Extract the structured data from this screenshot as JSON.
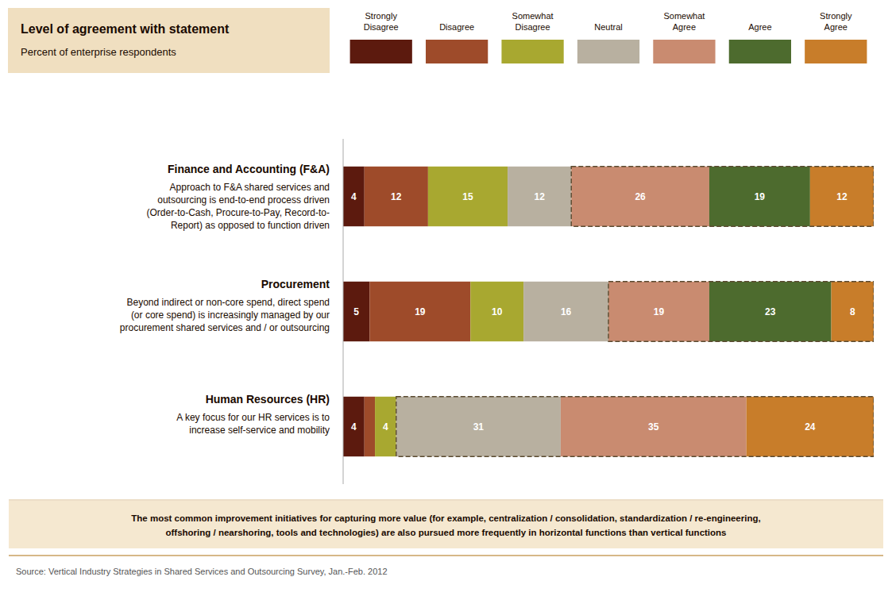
{
  "chart_data": {
    "type": "bar",
    "orientation": "horizontal",
    "stacked": true,
    "data_labels": true,
    "tick_labels": false,
    "grid": false,
    "title": "Level of agreement with statement",
    "subtitle": "Percent of enterprise respondents",
    "categories": [
      "Finance and Accounting (F&A)",
      "Procurement",
      "Human Resources (HR)"
    ],
    "xlim": [
      0,
      100
    ],
    "series": [
      {
        "name": "Strongly\nDisagree",
        "color": "#5c1a0e",
        "values": [
          4,
          5,
          4
        ]
      },
      {
        "name": "Disagree",
        "color": "#9e4b2a",
        "values": [
          12,
          19,
          2
        ]
      },
      {
        "name": "Somewhat\nDisagree",
        "color": "#a8a830",
        "values": [
          15,
          10,
          4
        ]
      },
      {
        "name": "Neutral",
        "color": "#b8b0a0",
        "values": [
          12,
          16,
          31
        ]
      },
      {
        "name": "Somewhat\nAgree",
        "color": "#c98b70",
        "values": [
          26,
          19,
          35
        ]
      },
      {
        "name": "Agree",
        "color": "#4d6b2e",
        "values": [
          19,
          23,
          0
        ]
      },
      {
        "name": "Strongly\nAgree",
        "color": "#c87d2a",
        "values": [
          12,
          8,
          24
        ]
      }
    ],
    "annotations": {
      "categories": [
        [
          "Approach to F&A shared services and",
          "outsourcing is end-to-end process driven",
          "(Order-to-Cash, Procure-to-Pay, Record-to-",
          "Report) as opposed to function driven"
        ],
        [
          "Beyond indirect or non-core spend, direct spend",
          "(or core spend) is increasingly managed by our",
          "procurement shared services and / or outsourcing"
        ],
        [
          "A key focus for our HR services is to",
          "increase self-service and mobility"
        ]
      ],
      "highlight_from_series": [
        4,
        4,
        3
      ],
      "footer": "The most common improvement initiatives for capturing more value (for example, centralization / consolidation, standardization / re-engineering,\noffshoring / nearshoring, tools and technologies) are also pursued more frequently in horizontal functions than vertical functions",
      "source": "Source: Vertical Industry Strategies in Shared Services and Outsourcing Survey, Jan.-Feb. 2012"
    }
  }
}
